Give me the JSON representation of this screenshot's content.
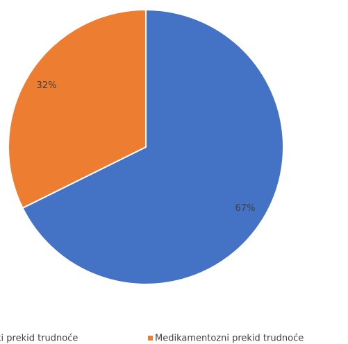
{
  "chart_data": {
    "type": "pie",
    "categories": [
      "ki prekid trudnoće",
      "Medikamentozni prekid trudnoće"
    ],
    "values": [
      67,
      32
    ],
    "value_labels": [
      "67%",
      "32%"
    ],
    "colors": [
      "#4472c4",
      "#ed7d31"
    ],
    "legend": "bottom"
  }
}
